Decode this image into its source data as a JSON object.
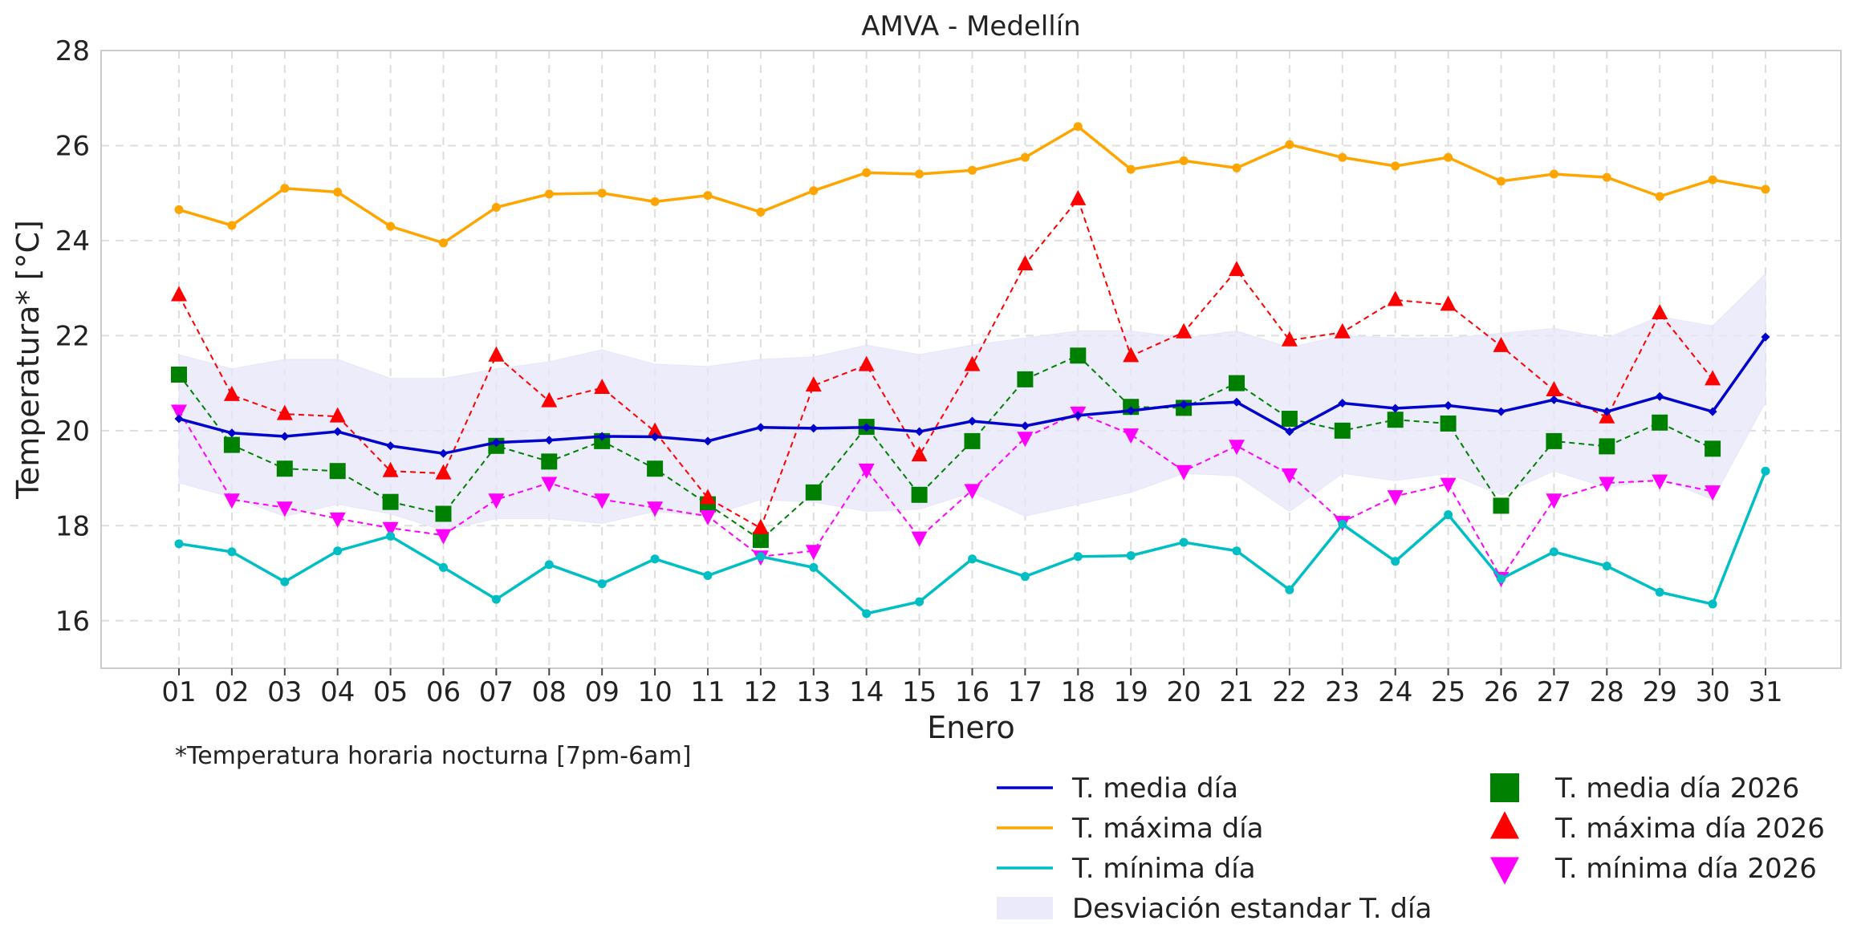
{
  "chart_data": {
    "type": "line",
    "title": "AMVA - Medellín",
    "xlabel": "Enero",
    "ylabel": "Temperatura* [°C]",
    "footnote": "*Temperatura horaria nocturna [7pm-6am]",
    "ylim": [
      15,
      28
    ],
    "yticks": [
      16,
      18,
      20,
      22,
      24,
      26,
      28
    ],
    "grid": true,
    "legend_position": "bottom-right",
    "categories": [
      "01",
      "02",
      "03",
      "04",
      "05",
      "06",
      "07",
      "08",
      "09",
      "10",
      "11",
      "12",
      "13",
      "14",
      "15",
      "16",
      "17",
      "18",
      "19",
      "20",
      "21",
      "22",
      "23",
      "24",
      "25",
      "26",
      "27",
      "28",
      "29",
      "30",
      "31"
    ],
    "band": {
      "name": "Desviación estandar T. día",
      "color": "#E6E6FA",
      "upper": [
        21.6,
        21.3,
        21.5,
        21.5,
        21.1,
        21.1,
        21.3,
        21.45,
        21.7,
        21.4,
        21.35,
        21.5,
        21.55,
        21.8,
        21.6,
        21.8,
        21.95,
        22.1,
        22.1,
        21.95,
        22.1,
        21.75,
        22.0,
        21.95,
        21.95,
        22.05,
        22.15,
        21.95,
        22.4,
        22.2,
        23.3
      ],
      "lower": [
        18.9,
        18.6,
        18.2,
        18.45,
        18.25,
        17.9,
        18.15,
        18.15,
        18.05,
        18.3,
        18.2,
        18.55,
        18.5,
        18.3,
        18.35,
        18.7,
        18.2,
        18.45,
        18.7,
        19.1,
        19.05,
        18.3,
        19.1,
        18.95,
        19.1,
        18.65,
        19.15,
        18.8,
        19.0,
        18.55,
        20.6
      ]
    },
    "series": [
      {
        "name": "T. media día",
        "color": "#0000CD",
        "style": "solid",
        "marker": "diamond",
        "values": [
          20.25,
          19.95,
          19.88,
          19.98,
          19.68,
          19.52,
          19.75,
          19.8,
          19.88,
          19.87,
          19.78,
          20.07,
          20.05,
          20.07,
          19.98,
          20.2,
          20.1,
          20.32,
          20.42,
          20.55,
          20.6,
          19.98,
          20.58,
          20.47,
          20.53,
          20.4,
          20.65,
          20.4,
          20.72,
          20.4,
          21.97
        ]
      },
      {
        "name": "T. máxima día",
        "color": "#FFA500",
        "style": "solid",
        "marker": "circle",
        "values": [
          24.65,
          24.32,
          25.1,
          25.02,
          24.3,
          23.95,
          24.7,
          24.98,
          25.0,
          24.82,
          24.95,
          24.6,
          25.05,
          25.43,
          25.4,
          25.48,
          25.75,
          26.4,
          25.5,
          25.68,
          25.53,
          26.02,
          25.75,
          25.57,
          25.75,
          25.25,
          25.4,
          25.33,
          24.93,
          25.28,
          25.08
        ]
      },
      {
        "name": "T. mínima día",
        "color": "#00BFC4",
        "style": "solid",
        "marker": "circle",
        "values": [
          17.62,
          17.45,
          16.82,
          17.47,
          17.78,
          17.12,
          16.45,
          17.18,
          16.78,
          17.3,
          16.95,
          17.35,
          17.12,
          16.15,
          16.4,
          17.3,
          16.93,
          17.35,
          17.37,
          17.65,
          17.47,
          16.65,
          18.03,
          17.25,
          18.23,
          16.88,
          17.45,
          17.15,
          16.6,
          16.35,
          19.15
        ]
      },
      {
        "name": "T. media día 2026",
        "color": "#008000",
        "style": "dashed",
        "marker": "square",
        "values": [
          21.18,
          19.7,
          19.2,
          19.15,
          18.5,
          18.25,
          19.68,
          19.35,
          19.78,
          19.2,
          18.45,
          17.7,
          18.7,
          20.08,
          18.65,
          19.78,
          21.08,
          21.58,
          20.5,
          20.48,
          21.0,
          20.25,
          20.0,
          20.23,
          20.15,
          18.42,
          19.78,
          19.67,
          20.17,
          19.62,
          null
        ]
      },
      {
        "name": "T. máxima día 2026",
        "color": "#FF0000",
        "style": "dashed",
        "marker": "triangle-up",
        "values": [
          22.85,
          20.75,
          20.35,
          20.3,
          19.15,
          19.1,
          21.58,
          20.62,
          20.9,
          19.98,
          18.58,
          17.95,
          20.95,
          21.38,
          19.48,
          21.38,
          23.5,
          24.87,
          21.57,
          22.07,
          23.38,
          21.9,
          22.07,
          22.75,
          22.65,
          21.78,
          20.85,
          20.28,
          22.47,
          21.08,
          null
        ]
      },
      {
        "name": "T. mínima día 2026",
        "color": "#FF00FF",
        "style": "dashed",
        "marker": "triangle-down",
        "values": [
          20.42,
          18.55,
          18.38,
          18.15,
          17.95,
          17.8,
          18.55,
          18.9,
          18.55,
          18.38,
          18.2,
          17.35,
          17.47,
          19.18,
          17.75,
          18.75,
          19.85,
          20.38,
          19.92,
          19.15,
          19.68,
          19.08,
          18.08,
          18.62,
          18.88,
          16.9,
          18.55,
          18.9,
          18.95,
          18.72,
          null
        ]
      }
    ]
  }
}
